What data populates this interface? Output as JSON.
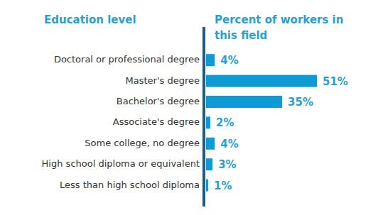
{
  "chart_data": {
    "type": "bar",
    "orientation": "horizontal",
    "y_label": "Education level",
    "x_label": "Percent of workers in this field",
    "categories": [
      "Doctoral or professional degree",
      "Master's degree",
      "Bachelor's degree",
      "Associate's degree",
      "Some college, no degree",
      "High school diploma or equivalent",
      "Less than high school diploma"
    ],
    "values": [
      4,
      51,
      35,
      2,
      4,
      3,
      1
    ],
    "value_labels": [
      "4%",
      "51%",
      "35%",
      "2%",
      "4%",
      "3%",
      "1%"
    ],
    "color": "#0e9ad2",
    "xlim": [
      0,
      51
    ],
    "data_labels": true,
    "tick_labels": "y"
  }
}
